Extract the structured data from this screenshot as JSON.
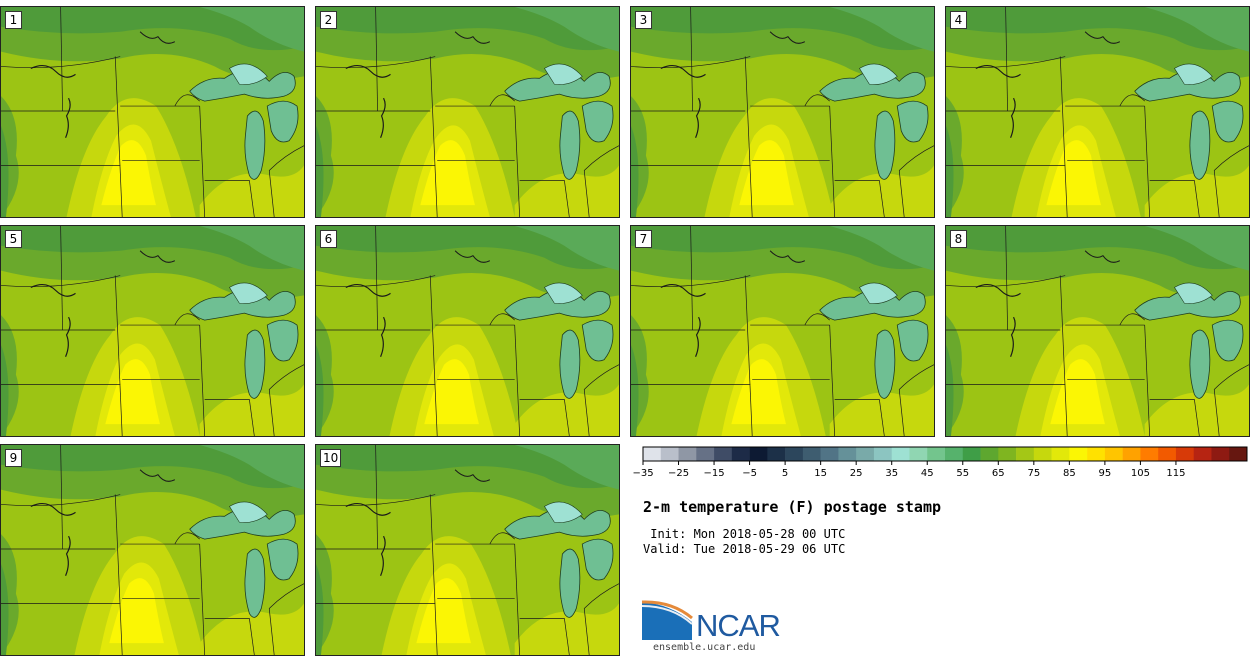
{
  "title": "2-m temperature (F) postage stamp",
  "init": " Init: Mon 2018-05-28 00 UTC",
  "valid": "Valid: Tue 2018-05-29 06 UTC",
  "site": "ensemble.ucar.edu",
  "logo_text": "NCAR",
  "panels": [
    {
      "label": "1",
      "variant": 0
    },
    {
      "label": "2",
      "variant": 1
    },
    {
      "label": "3",
      "variant": 2
    },
    {
      "label": "4",
      "variant": 3
    },
    {
      "label": "5",
      "variant": 4
    },
    {
      "label": "6",
      "variant": 5
    },
    {
      "label": "7",
      "variant": 6
    },
    {
      "label": "8",
      "variant": 7
    },
    {
      "label": "9",
      "variant": 8
    },
    {
      "label": "10",
      "variant": 9
    }
  ],
  "colorbar": {
    "colors": [
      "#dfe3ea",
      "#b9bfca",
      "#8f97a5",
      "#667186",
      "#3f4c66",
      "#1d2b47",
      "#0d1a33",
      "#1c3048",
      "#2c465c",
      "#3e5d70",
      "#517486",
      "#659199",
      "#79aaa9",
      "#8cc5c1",
      "#9ee1d3",
      "#90d6b2",
      "#73c58d",
      "#56b26c",
      "#3f9e47",
      "#5ea72f",
      "#7fb520",
      "#a4c716",
      "#c6d80d",
      "#e2e80a",
      "#fbf604",
      "#ffe100",
      "#ffc500",
      "#ffa200",
      "#ff7c00",
      "#f25a00",
      "#d73a08",
      "#b62412",
      "#8e1a12",
      "#661710"
    ],
    "tick_labels": [
      "−35",
      "−25",
      "−15",
      "−5",
      "5",
      "15",
      "25",
      "35",
      "45",
      "55",
      "65",
      "75",
      "85",
      "95",
      "105",
      "115"
    ]
  }
}
